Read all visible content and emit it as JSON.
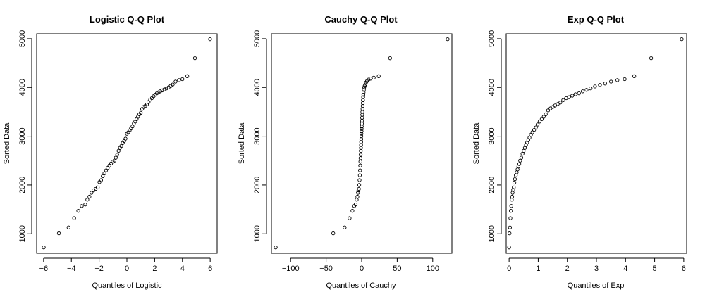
{
  "chart_data": [
    {
      "type": "scatter",
      "title": "Logistic Q-Q Plot",
      "xlabel": "Quantiles of Logistic",
      "ylabel": "Sorted Data",
      "xlim": [
        -6.5,
        6.5
      ],
      "ylim": [
        600,
        5100
      ],
      "xticks": [
        -6,
        -4,
        -2,
        0,
        2,
        4,
        6
      ],
      "yticks": [
        1000,
        2000,
        3000,
        4000,
        5000
      ],
      "grid": false,
      "legend": "none",
      "x": [
        -5.99,
        -4.9,
        -4.2,
        -3.8,
        -3.5,
        -3.25,
        -3.0,
        -2.85,
        -2.7,
        -2.55,
        -2.4,
        -2.25,
        -2.1,
        -1.98,
        -1.86,
        -1.74,
        -1.62,
        -1.5,
        -1.38,
        -1.26,
        -1.14,
        -1.02,
        -0.9,
        -0.8,
        -0.7,
        -0.6,
        -0.5,
        -0.4,
        -0.3,
        -0.2,
        -0.1,
        0.0,
        0.1,
        0.2,
        0.3,
        0.4,
        0.5,
        0.6,
        0.7,
        0.8,
        0.9,
        1.0,
        1.1,
        1.2,
        1.32,
        1.44,
        1.56,
        1.68,
        1.8,
        1.92,
        2.04,
        2.16,
        2.28,
        2.4,
        2.55,
        2.7,
        2.85,
        3.0,
        3.15,
        3.3,
        3.5,
        3.75,
        4.0,
        4.35,
        4.9,
        5.99
      ],
      "y": [
        720,
        1010,
        1130,
        1320,
        1470,
        1570,
        1600,
        1700,
        1760,
        1840,
        1890,
        1920,
        1950,
        2060,
        2100,
        2180,
        2240,
        2300,
        2350,
        2400,
        2440,
        2480,
        2500,
        2560,
        2620,
        2700,
        2760,
        2800,
        2860,
        2900,
        2950,
        3050,
        3080,
        3120,
        3160,
        3200,
        3260,
        3300,
        3350,
        3400,
        3450,
        3480,
        3560,
        3600,
        3620,
        3650,
        3700,
        3750,
        3780,
        3820,
        3850,
        3880,
        3900,
        3920,
        3940,
        3960,
        3980,
        4000,
        4030,
        4060,
        4120,
        4150,
        4170,
        4230,
        4600,
        4990
      ]
    },
    {
      "type": "scatter",
      "title": "Cauchy Q-Q Plot",
      "xlabel": "Quantiles of Cauchy",
      "ylabel": "Sorted Data",
      "xlim": [
        -127,
        127
      ],
      "ylim": [
        600,
        5100
      ],
      "xticks": [
        -100,
        -50,
        0,
        50,
        100
      ],
      "yticks": [
        1000,
        2000,
        3000,
        4000,
        5000
      ],
      "grid": false,
      "legend": "none",
      "x": [
        -121,
        -40,
        -24,
        -17,
        -13,
        -10.5,
        -8.5,
        -7,
        -6,
        -5.2,
        -4.5,
        -3.9,
        -3.4,
        -3.0,
        -2.6,
        -2.3,
        -2.0,
        -1.8,
        -1.6,
        -1.4,
        -1.2,
        -1.0,
        -0.85,
        -0.7,
        -0.55,
        -0.4,
        -0.25,
        -0.1,
        0.05,
        0.2,
        0.35,
        0.5,
        0.65,
        0.8,
        1.0,
        1.2,
        1.4,
        1.6,
        1.85,
        2.1,
        2.4,
        2.7,
        3.1,
        3.6,
        4.2,
        5.0,
        6.0,
        7.5,
        9.5,
        12.5,
        17,
        24,
        40,
        121
      ],
      "y": [
        720,
        1010,
        1130,
        1320,
        1470,
        1570,
        1600,
        1700,
        1760,
        1840,
        1890,
        1920,
        2000,
        2100,
        2200,
        2300,
        2400,
        2480,
        2550,
        2620,
        2700,
        2760,
        2820,
        2880,
        2940,
        3000,
        3050,
        3100,
        3150,
        3200,
        3260,
        3320,
        3380,
        3440,
        3500,
        3560,
        3620,
        3680,
        3740,
        3800,
        3850,
        3900,
        3950,
        4000,
        4030,
        4060,
        4100,
        4130,
        4160,
        4180,
        4200,
        4230,
        4600,
        4990
      ]
    },
    {
      "type": "scatter",
      "title": "Exp Q-Q Plot",
      "xlabel": "Quantiles of Exp",
      "ylabel": "Sorted Data",
      "xlim": [
        -0.1,
        6.1
      ],
      "ylim": [
        600,
        5100
      ],
      "xticks": [
        0,
        1,
        2,
        3,
        4,
        5,
        6
      ],
      "yticks": [
        1000,
        2000,
        3000,
        4000,
        5000
      ],
      "grid": false,
      "legend": "none",
      "x": [
        0.0,
        0.015,
        0.03,
        0.045,
        0.06,
        0.075,
        0.09,
        0.105,
        0.12,
        0.14,
        0.16,
        0.18,
        0.2,
        0.23,
        0.26,
        0.29,
        0.32,
        0.35,
        0.38,
        0.42,
        0.46,
        0.5,
        0.54,
        0.58,
        0.62,
        0.66,
        0.7,
        0.75,
        0.8,
        0.86,
        0.92,
        0.98,
        1.05,
        1.12,
        1.19,
        1.26,
        1.34,
        1.42,
        1.5,
        1.58,
        1.67,
        1.76,
        1.86,
        1.96,
        2.06,
        2.17,
        2.28,
        2.4,
        2.53,
        2.66,
        2.8,
        2.95,
        3.12,
        3.3,
        3.5,
        3.72,
        3.97,
        4.3,
        4.88,
        5.93
      ],
      "y": [
        720,
        1010,
        1130,
        1320,
        1470,
        1570,
        1700,
        1760,
        1840,
        1900,
        1950,
        2050,
        2120,
        2200,
        2260,
        2320,
        2380,
        2430,
        2500,
        2560,
        2640,
        2700,
        2760,
        2820,
        2870,
        2920,
        2970,
        3030,
        3080,
        3130,
        3180,
        3240,
        3300,
        3350,
        3400,
        3450,
        3530,
        3570,
        3600,
        3630,
        3660,
        3690,
        3740,
        3780,
        3800,
        3830,
        3860,
        3880,
        3920,
        3950,
        3980,
        4020,
        4050,
        4080,
        4120,
        4150,
        4170,
        4230,
        4600,
        4990
      ]
    }
  ]
}
